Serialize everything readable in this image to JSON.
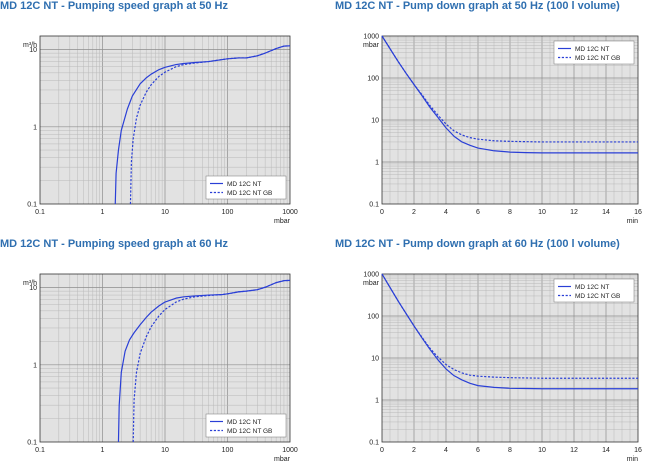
{
  "charts": [
    {
      "title": "MD 12C NT - Pumping speed graph at 50 Hz",
      "chart_data": {
        "type": "line",
        "xscale": "log",
        "yscale": "log",
        "xlim": [
          0.1,
          1000
        ],
        "ylim": [
          0.1,
          15
        ],
        "xticks": [
          "0.1",
          "1",
          "10",
          "100",
          "1000"
        ],
        "yticks": [
          "0.1",
          "1",
          "10"
        ],
        "xlabel": "mbar",
        "ylabel": "m³/h",
        "legend": "bottom-right",
        "grid": true,
        "series": [
          {
            "name": "MD 12C NT",
            "style": "solid",
            "color": "#2a3fd6",
            "x": [
              1.6,
              1.65,
              1.8,
              2.0,
              2.5,
              3,
              4,
              5,
              6,
              8,
              10,
              15,
              20,
              30,
              50,
              80,
              100,
              150,
              200,
              300,
              400,
              600,
              800,
              1000
            ],
            "y": [
              0.1,
              0.25,
              0.5,
              0.9,
              1.7,
              2.5,
              3.6,
              4.3,
              4.8,
              5.5,
              5.9,
              6.4,
              6.6,
              6.8,
              7.0,
              7.4,
              7.6,
              7.8,
              7.8,
              8.3,
              9.0,
              10.3,
              11.1,
              11.2
            ]
          },
          {
            "name": "MD 12C NT GB",
            "style": "dashed",
            "color": "#2a3fd6",
            "x": [
              2.8,
              2.9,
              3.1,
              3.5,
              4,
              5,
              6,
              8,
              10,
              15,
              20,
              30,
              50,
              80,
              100,
              150,
              200,
              300,
              400,
              600,
              800,
              1000
            ],
            "y": [
              0.1,
              0.35,
              0.7,
              1.3,
              1.9,
              2.8,
              3.5,
              4.5,
              5.1,
              6.0,
              6.4,
              6.7,
              7.0,
              7.4,
              7.6,
              7.8,
              7.8,
              8.3,
              9.0,
              10.3,
              11.1,
              11.2
            ]
          }
        ]
      }
    },
    {
      "title": "MD 12C NT - Pump down graph at 50 Hz (100 l volume)",
      "chart_data": {
        "type": "line",
        "xscale": "linear",
        "yscale": "log",
        "xlim": [
          0,
          16
        ],
        "ylim": [
          0.1,
          1000
        ],
        "xticks": [
          "0",
          "2",
          "4",
          "6",
          "8",
          "10",
          "12",
          "14",
          "16"
        ],
        "yticks": [
          "0.1",
          "1",
          "10",
          "100",
          "1000"
        ],
        "xlabel": "min",
        "ylabel": "mbar",
        "legend": "top-right",
        "grid": true,
        "series": [
          {
            "name": "MD 12C NT",
            "style": "solid",
            "color": "#2a3fd6",
            "x": [
              0,
              0.5,
              1,
              1.5,
              2,
              2.5,
              3,
              3.5,
              4,
              4.5,
              5,
              5.5,
              6,
              7,
              8,
              9,
              10,
              12,
              14,
              16
            ],
            "y": [
              1000,
              500,
              250,
              130,
              70,
              38,
              20,
              11.5,
              6.5,
              4.1,
              3.0,
              2.5,
              2.15,
              1.85,
              1.72,
              1.67,
              1.65,
              1.65,
              1.65,
              1.65
            ]
          },
          {
            "name": "MD 12C NT GB",
            "style": "dashed",
            "color": "#2a3fd6",
            "x": [
              0,
              0.5,
              1,
              1.5,
              2,
              2.5,
              3,
              3.5,
              4,
              4.5,
              5,
              5.5,
              6,
              7,
              8,
              9,
              10,
              12,
              14,
              16
            ],
            "y": [
              1000,
              500,
              250,
              130,
              70,
              40,
              22,
              13,
              8,
              5.5,
              4.4,
              3.8,
              3.5,
              3.2,
              3.1,
              3.05,
              3.0,
              3.0,
              3.0,
              3.0
            ]
          }
        ]
      }
    },
    {
      "title": "MD 12C NT - Pumping speed graph at 60 Hz",
      "chart_data": {
        "type": "line",
        "xscale": "log",
        "yscale": "log",
        "xlim": [
          0.1,
          1000
        ],
        "ylim": [
          0.1,
          15
        ],
        "xticks": [
          "0.1",
          "1",
          "10",
          "100",
          "1000"
        ],
        "yticks": [
          "0.1",
          "1",
          "10"
        ],
        "xlabel": "mbar",
        "ylabel": "m³/h",
        "legend": "bottom-right",
        "grid": true,
        "series": [
          {
            "name": "MD 12C NT",
            "style": "solid",
            "color": "#2a3fd6",
            "x": [
              1.8,
              1.85,
              2.0,
              2.3,
              2.7,
              3.2,
              4,
              5,
              6,
              8,
              10,
              15,
              20,
              30,
              50,
              80,
              100,
              150,
              200,
              300,
              400,
              600,
              800,
              1000
            ],
            "y": [
              0.1,
              0.3,
              0.8,
              1.5,
              2.1,
              2.6,
              3.3,
              4.1,
              4.8,
              5.8,
              6.5,
              7.3,
              7.6,
              7.8,
              8.0,
              8.1,
              8.3,
              8.8,
              9.0,
              9.4,
              10.1,
              11.6,
              12.3,
              12.4
            ]
          },
          {
            "name": "MD 12C NT GB",
            "style": "dashed",
            "color": "#2a3fd6",
            "x": [
              3.1,
              3.2,
              3.5,
              4,
              5,
              6,
              8,
              10,
              15,
              20,
              30,
              50,
              80,
              100,
              150,
              200,
              300,
              400,
              600,
              800,
              1000
            ],
            "y": [
              0.1,
              0.35,
              0.8,
              1.4,
              2.3,
              3.1,
              4.3,
              5.2,
              6.5,
              7.1,
              7.6,
              7.9,
              8.1,
              8.3,
              8.8,
              9.0,
              9.4,
              10.1,
              11.6,
              12.3,
              12.4
            ]
          }
        ]
      }
    },
    {
      "title": "MD 12C NT - Pump down graph at 60 Hz (100 l volume)",
      "chart_data": {
        "type": "line",
        "xscale": "linear",
        "yscale": "log",
        "xlim": [
          0,
          16
        ],
        "ylim": [
          0.1,
          1000
        ],
        "xticks": [
          "0",
          "2",
          "4",
          "6",
          "8",
          "10",
          "12",
          "14",
          "16"
        ],
        "yticks": [
          "0.1",
          "1",
          "10",
          "100",
          "1000"
        ],
        "xlabel": "min",
        "ylabel": "mbar",
        "legend": "top-right",
        "grid": true,
        "series": [
          {
            "name": "MD 12C NT",
            "style": "solid",
            "color": "#2a3fd6",
            "x": [
              0,
              0.5,
              1,
              1.5,
              2,
              2.5,
              3,
              3.5,
              4,
              4.5,
              5,
              5.5,
              6,
              7,
              8,
              9,
              10,
              12,
              14,
              16
            ],
            "y": [
              1000,
              480,
              230,
              115,
              58,
              30,
              16,
              9,
              5.5,
              3.8,
              3.0,
              2.5,
              2.2,
              2.0,
              1.9,
              1.88,
              1.85,
              1.85,
              1.85,
              1.85
            ]
          },
          {
            "name": "MD 12C NT GB",
            "style": "dashed",
            "color": "#2a3fd6",
            "x": [
              0,
              0.5,
              1,
              1.5,
              2,
              2.5,
              3,
              3.5,
              4,
              4.5,
              5,
              5.5,
              6,
              7,
              8,
              9,
              10,
              12,
              14,
              16
            ],
            "y": [
              1000,
              480,
              230,
              115,
              58,
              31,
              17,
              10.5,
              7,
              5.3,
              4.4,
              3.9,
              3.7,
              3.5,
              3.4,
              3.35,
              3.3,
              3.3,
              3.3,
              3.3
            ]
          }
        ]
      }
    }
  ]
}
